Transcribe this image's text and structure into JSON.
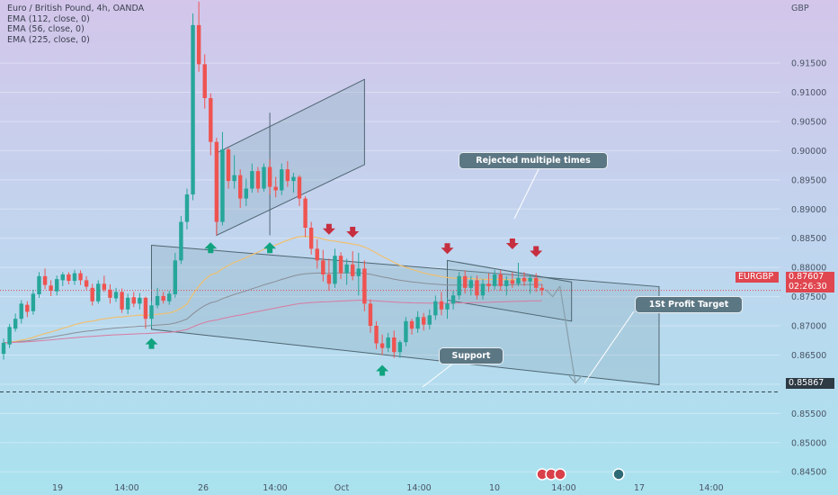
{
  "legend": {
    "title": "Euro / British Pound, 4h, OANDA",
    "ema_1": "EMA (112, close, 0)",
    "ema_2": "EMA (56, close, 0)",
    "ema_3": "EMA (225, close, 0)"
  },
  "annotations": {
    "rejected": "Rejected multiple times",
    "profit": "1St Profit Target",
    "support": "Support"
  },
  "price_tag": {
    "symbol": "EURGBP",
    "price": "0.87607",
    "countdown": "02:26:30"
  },
  "support_tag": {
    "price": "0.85867"
  },
  "colors": {
    "up": "#26a69a",
    "down": "#ef5350",
    "arrow_up": "#10a37f",
    "arrow_down": "#c62f3f",
    "ema_fast": "#f0c070",
    "ema_mid": "#8a8f98",
    "ema_slow": "#d97aa0",
    "channel_fill": "#8fb3c4"
  },
  "chart_data": {
    "type": "candlestick",
    "symbol": "Euro / British Pound",
    "timeframe": "4h",
    "source": "OANDA",
    "currency": "GBP",
    "y_ticks": [
      0.915,
      0.91,
      0.905,
      0.9,
      0.895,
      0.89,
      0.885,
      0.88,
      0.875,
      0.87,
      0.865,
      0.86,
      0.855,
      0.85,
      0.845
    ],
    "ylim": [
      0.8438,
      0.9258
    ],
    "x_ticks": [
      "19",
      "14:00",
      "26",
      "14:00",
      "Oct",
      "14:00",
      "10",
      "14:00",
      "17",
      "14:00"
    ],
    "current_price": 0.87607,
    "support_level": 0.85867,
    "candles": [
      {
        "o": 0.8652,
        "h": 0.8678,
        "l": 0.8642,
        "c": 0.8671
      },
      {
        "o": 0.8668,
        "h": 0.8703,
        "l": 0.8662,
        "c": 0.8698
      },
      {
        "o": 0.8695,
        "h": 0.8721,
        "l": 0.869,
        "c": 0.8712
      },
      {
        "o": 0.8712,
        "h": 0.8744,
        "l": 0.8704,
        "c": 0.8738
      },
      {
        "o": 0.8736,
        "h": 0.8742,
        "l": 0.8715,
        "c": 0.8724
      },
      {
        "o": 0.8725,
        "h": 0.8762,
        "l": 0.8719,
        "c": 0.8755
      },
      {
        "o": 0.8754,
        "h": 0.8792,
        "l": 0.8748,
        "c": 0.8785
      },
      {
        "o": 0.8785,
        "h": 0.8798,
        "l": 0.8763,
        "c": 0.877
      },
      {
        "o": 0.8769,
        "h": 0.8778,
        "l": 0.8751,
        "c": 0.876
      },
      {
        "o": 0.8759,
        "h": 0.8786,
        "l": 0.8752,
        "c": 0.878
      },
      {
        "o": 0.8778,
        "h": 0.8792,
        "l": 0.8768,
        "c": 0.8788
      },
      {
        "o": 0.8788,
        "h": 0.8792,
        "l": 0.8771,
        "c": 0.8777
      },
      {
        "o": 0.8777,
        "h": 0.8796,
        "l": 0.877,
        "c": 0.879
      },
      {
        "o": 0.879,
        "h": 0.8795,
        "l": 0.877,
        "c": 0.8778
      },
      {
        "o": 0.8778,
        "h": 0.8785,
        "l": 0.8762,
        "c": 0.8767
      },
      {
        "o": 0.8765,
        "h": 0.8772,
        "l": 0.8735,
        "c": 0.8742
      },
      {
        "o": 0.8742,
        "h": 0.8778,
        "l": 0.8738,
        "c": 0.8772
      },
      {
        "o": 0.8772,
        "h": 0.8786,
        "l": 0.8758,
        "c": 0.8762
      },
      {
        "o": 0.8762,
        "h": 0.8771,
        "l": 0.8738,
        "c": 0.8748
      },
      {
        "o": 0.8747,
        "h": 0.8765,
        "l": 0.8741,
        "c": 0.8758
      },
      {
        "o": 0.8758,
        "h": 0.8764,
        "l": 0.8722,
        "c": 0.8728
      },
      {
        "o": 0.8728,
        "h": 0.8755,
        "l": 0.872,
        "c": 0.8748
      },
      {
        "o": 0.8749,
        "h": 0.8758,
        "l": 0.8732,
        "c": 0.8738
      },
      {
        "o": 0.8738,
        "h": 0.8756,
        "l": 0.8728,
        "c": 0.8748
      },
      {
        "o": 0.8748,
        "h": 0.875,
        "l": 0.8695,
        "c": 0.8712
      },
      {
        "o": 0.8712,
        "h": 0.8742,
        "l": 0.8698,
        "c": 0.8735
      },
      {
        "o": 0.8735,
        "h": 0.8765,
        "l": 0.873,
        "c": 0.8751
      },
      {
        "o": 0.8751,
        "h": 0.8758,
        "l": 0.8738,
        "c": 0.8743
      },
      {
        "o": 0.8742,
        "h": 0.876,
        "l": 0.8736,
        "c": 0.8755
      },
      {
        "o": 0.8754,
        "h": 0.8825,
        "l": 0.8748,
        "c": 0.8812
      },
      {
        "o": 0.8812,
        "h": 0.8888,
        "l": 0.8806,
        "c": 0.8878
      },
      {
        "o": 0.8878,
        "h": 0.8935,
        "l": 0.8865,
        "c": 0.8925
      },
      {
        "o": 0.8925,
        "h": 0.9235,
        "l": 0.8915,
        "c": 0.9215
      },
      {
        "o": 0.9215,
        "h": 0.9255,
        "l": 0.9135,
        "c": 0.9148
      },
      {
        "o": 0.9148,
        "h": 0.9165,
        "l": 0.9072,
        "c": 0.909
      },
      {
        "o": 0.909,
        "h": 0.9098,
        "l": 0.8992,
        "c": 0.9015
      },
      {
        "o": 0.9015,
        "h": 0.9022,
        "l": 0.8855,
        "c": 0.8878
      },
      {
        "o": 0.8878,
        "h": 0.9032,
        "l": 0.8872,
        "c": 0.9002
      },
      {
        "o": 0.9002,
        "h": 0.9005,
        "l": 0.8935,
        "c": 0.8948
      },
      {
        "o": 0.8948,
        "h": 0.8992,
        "l": 0.8935,
        "c": 0.8958
      },
      {
        "o": 0.8958,
        "h": 0.8968,
        "l": 0.8902,
        "c": 0.8918
      },
      {
        "o": 0.8918,
        "h": 0.8952,
        "l": 0.8905,
        "c": 0.8935
      },
      {
        "o": 0.8935,
        "h": 0.8978,
        "l": 0.8928,
        "c": 0.8965
      },
      {
        "o": 0.8965,
        "h": 0.8972,
        "l": 0.8928,
        "c": 0.8935
      },
      {
        "o": 0.8935,
        "h": 0.8978,
        "l": 0.893,
        "c": 0.8972
      },
      {
        "o": 0.8972,
        "h": 0.8985,
        "l": 0.8925,
        "c": 0.8938
      },
      {
        "o": 0.8938,
        "h": 0.8955,
        "l": 0.892,
        "c": 0.8932
      },
      {
        "o": 0.8932,
        "h": 0.8978,
        "l": 0.8924,
        "c": 0.8968
      },
      {
        "o": 0.8968,
        "h": 0.8982,
        "l": 0.8938,
        "c": 0.8948
      },
      {
        "o": 0.8948,
        "h": 0.8962,
        "l": 0.8928,
        "c": 0.8955
      },
      {
        "o": 0.8955,
        "h": 0.8958,
        "l": 0.8905,
        "c": 0.8918
      },
      {
        "o": 0.8918,
        "h": 0.8922,
        "l": 0.8852,
        "c": 0.8868
      },
      {
        "o": 0.8868,
        "h": 0.8878,
        "l": 0.8822,
        "c": 0.8832
      },
      {
        "o": 0.8832,
        "h": 0.8848,
        "l": 0.8798,
        "c": 0.8812
      },
      {
        "o": 0.8812,
        "h": 0.883,
        "l": 0.8776,
        "c": 0.8788
      },
      {
        "o": 0.8788,
        "h": 0.8815,
        "l": 0.876,
        "c": 0.8772
      },
      {
        "o": 0.8772,
        "h": 0.8832,
        "l": 0.8765,
        "c": 0.882
      },
      {
        "o": 0.882,
        "h": 0.8826,
        "l": 0.878,
        "c": 0.879
      },
      {
        "o": 0.879,
        "h": 0.8815,
        "l": 0.877,
        "c": 0.8805
      },
      {
        "o": 0.8805,
        "h": 0.8828,
        "l": 0.8778,
        "c": 0.8785
      },
      {
        "o": 0.8785,
        "h": 0.8825,
        "l": 0.8752,
        "c": 0.8798
      },
      {
        "o": 0.8798,
        "h": 0.8812,
        "l": 0.8725,
        "c": 0.8738
      },
      {
        "o": 0.8738,
        "h": 0.8745,
        "l": 0.8688,
        "c": 0.87
      },
      {
        "o": 0.87,
        "h": 0.8708,
        "l": 0.866,
        "c": 0.867
      },
      {
        "o": 0.867,
        "h": 0.8685,
        "l": 0.865,
        "c": 0.8662
      },
      {
        "o": 0.8662,
        "h": 0.8688,
        "l": 0.8655,
        "c": 0.868
      },
      {
        "o": 0.868,
        "h": 0.8692,
        "l": 0.8645,
        "c": 0.8655
      },
      {
        "o": 0.8655,
        "h": 0.8675,
        "l": 0.8645,
        "c": 0.8672
      },
      {
        "o": 0.8672,
        "h": 0.8715,
        "l": 0.8665,
        "c": 0.8708
      },
      {
        "o": 0.8708,
        "h": 0.8712,
        "l": 0.8685,
        "c": 0.8695
      },
      {
        "o": 0.8695,
        "h": 0.8725,
        "l": 0.8688,
        "c": 0.8715
      },
      {
        "o": 0.8715,
        "h": 0.8722,
        "l": 0.8692,
        "c": 0.8702
      },
      {
        "o": 0.8702,
        "h": 0.8728,
        "l": 0.8694,
        "c": 0.8718
      },
      {
        "o": 0.8718,
        "h": 0.8752,
        "l": 0.871,
        "c": 0.8742
      },
      {
        "o": 0.8742,
        "h": 0.8758,
        "l": 0.8718,
        "c": 0.8728
      },
      {
        "o": 0.8728,
        "h": 0.8748,
        "l": 0.8712,
        "c": 0.8738
      },
      {
        "o": 0.8738,
        "h": 0.876,
        "l": 0.8728,
        "c": 0.8752
      },
      {
        "o": 0.8752,
        "h": 0.8792,
        "l": 0.8745,
        "c": 0.8785
      },
      {
        "o": 0.8785,
        "h": 0.8795,
        "l": 0.8755,
        "c": 0.8765
      },
      {
        "o": 0.8765,
        "h": 0.8785,
        "l": 0.8752,
        "c": 0.8778
      },
      {
        "o": 0.8778,
        "h": 0.8786,
        "l": 0.8745,
        "c": 0.8752
      },
      {
        "o": 0.8752,
        "h": 0.878,
        "l": 0.8745,
        "c": 0.8772
      },
      {
        "o": 0.8772,
        "h": 0.879,
        "l": 0.8758,
        "c": 0.8768
      },
      {
        "o": 0.8768,
        "h": 0.8796,
        "l": 0.8762,
        "c": 0.8788
      },
      {
        "o": 0.8788,
        "h": 0.8795,
        "l": 0.876,
        "c": 0.8768
      },
      {
        "o": 0.8768,
        "h": 0.8785,
        "l": 0.8752,
        "c": 0.8778
      },
      {
        "o": 0.8778,
        "h": 0.8792,
        "l": 0.8765,
        "c": 0.8772
      },
      {
        "o": 0.8772,
        "h": 0.8808,
        "l": 0.8768,
        "c": 0.8782
      },
      {
        "o": 0.8782,
        "h": 0.8792,
        "l": 0.8768,
        "c": 0.8776
      },
      {
        "o": 0.8776,
        "h": 0.8788,
        "l": 0.8755,
        "c": 0.8782
      },
      {
        "o": 0.8782,
        "h": 0.879,
        "l": 0.8758,
        "c": 0.8765
      },
      {
        "o": 0.8765,
        "h": 0.8772,
        "l": 0.8752,
        "c": 0.8761
      }
    ]
  }
}
